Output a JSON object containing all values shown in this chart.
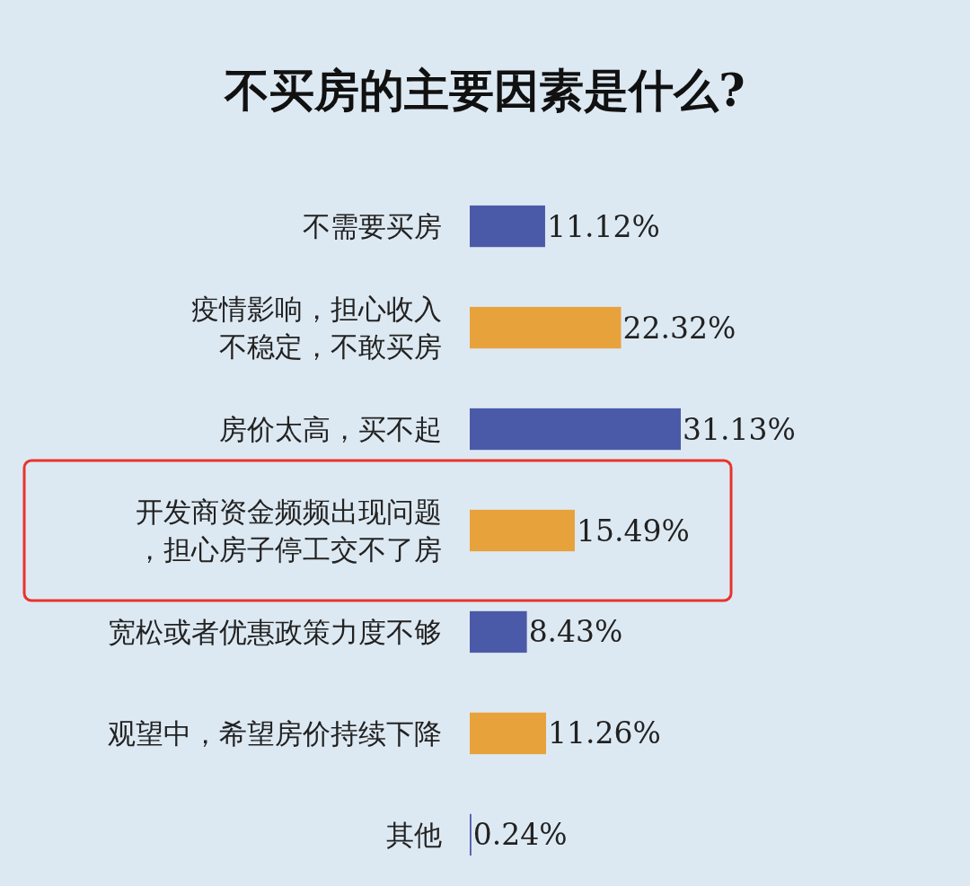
{
  "chart_data": {
    "type": "bar",
    "orientation": "horizontal",
    "title": "不买房的主要因素是什么?",
    "categories": [
      "不需要买房",
      "疫情影响，担心收入不稳定，不敢买房",
      "房价太高，买不起",
      "开发商资金频频出现问题，担心房子停工交不了房",
      "宽松或者优惠政策力度不够",
      "观望中，希望房价持续下降",
      "其他"
    ],
    "values": [
      11.12,
      22.32,
      31.13,
      15.49,
      8.43,
      11.26,
      0.24
    ],
    "colors": [
      "#4b5aa8",
      "#e8a23c",
      "#4b5aa8",
      "#e8a23c",
      "#4b5aa8",
      "#e8a23c",
      "#4b5aa8"
    ],
    "value_labels": [
      "11.12%",
      "22.32%",
      "31.13%",
      "15.49%",
      "8.43%",
      "11.26%",
      "0.24%"
    ],
    "grid": false
  }
}
